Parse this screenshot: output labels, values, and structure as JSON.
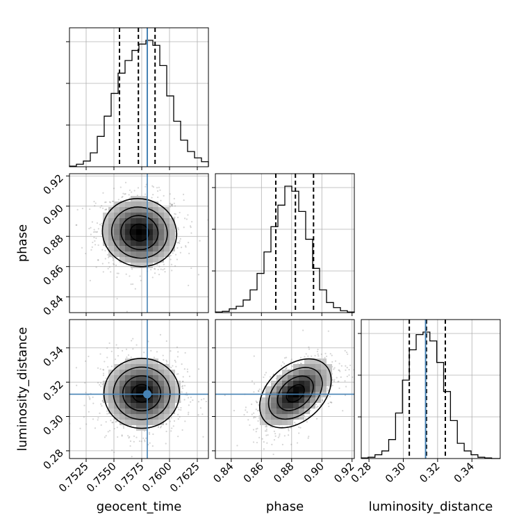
{
  "chart_data": {
    "type": "corner",
    "parameters": [
      "geocent_time",
      "phase",
      "luminosity_distance"
    ],
    "truths": {
      "geocent_time": 0.758,
      "luminosity_distance": 0.313
    },
    "quantiles": {
      "geocent_time": [
        0.7555,
        0.7572,
        0.7587
      ],
      "phase": [
        0.8695,
        0.8825,
        0.8945
      ],
      "luminosity_distance": [
        0.3035,
        0.3135,
        0.3245
      ]
    },
    "ranges": {
      "geocent_time": [
        0.751,
        0.7635
      ],
      "phase": [
        0.8295,
        0.9215
      ],
      "luminosity_distance": [
        0.2755,
        0.3565
      ]
    },
    "ticks": {
      "geocent_time": [
        "0.7525",
        "0.7550",
        "0.7575",
        "0.7600",
        "0.7625"
      ],
      "phase": [
        "0.84",
        "0.86",
        "0.88",
        "0.90",
        "0.92"
      ],
      "luminosity_distance": [
        "0.28",
        "0.30",
        "0.32",
        "0.34"
      ]
    },
    "histograms": {
      "geocent_time": {
        "edges_start": 0.751,
        "bin_width": 0.000625,
        "counts": [
          0.005,
          0.02,
          0.045,
          0.11,
          0.24,
          0.4,
          0.58,
          0.74,
          0.84,
          0.92,
          0.97,
          1.0,
          0.96,
          0.8,
          0.56,
          0.36,
          0.21,
          0.12,
          0.07,
          0.04,
          0.015
        ]
      },
      "phase": {
        "edges_start": 0.8295,
        "bin_width": 0.0046,
        "counts": [
          0.005,
          0.01,
          0.03,
          0.05,
          0.1,
          0.18,
          0.31,
          0.48,
          0.68,
          0.85,
          1.0,
          0.96,
          0.8,
          0.58,
          0.35,
          0.18,
          0.08,
          0.04,
          0.015,
          0.005
        ]
      },
      "luminosity_distance": {
        "edges_start": 0.2755,
        "bin_width": 0.004,
        "counts": [
          0.005,
          0.01,
          0.03,
          0.06,
          0.15,
          0.36,
          0.62,
          0.86,
          0.98,
          1.0,
          0.93,
          0.76,
          0.53,
          0.3,
          0.12,
          0.06,
          0.03,
          0.01,
          0.005,
          0.0
        ]
      }
    },
    "joint": [
      {
        "x": "geocent_time",
        "y": "phase",
        "center": [
          0.7573,
          0.8825
        ],
        "sigma": [
          0.0017,
          0.0114
        ],
        "rho": -0.05
      },
      {
        "x": "geocent_time",
        "y": "luminosity_distance",
        "center": [
          0.7575,
          0.3135
        ],
        "sigma": [
          0.0017,
          0.0102
        ],
        "rho": 0.0
      },
      {
        "x": "phase",
        "y": "luminosity_distance",
        "center": [
          0.8825,
          0.3135
        ],
        "sigma": [
          0.012,
          0.01
        ],
        "rho": 0.55
      }
    ],
    "contour_levels_sigma": [
      0.5,
      1.0,
      1.5,
      2.0
    ],
    "xlabel": [
      "geocent_time",
      "phase",
      "luminosity_distance"
    ],
    "ylabel": [
      "phase",
      "luminosity_distance"
    ],
    "truth_color": "#4682b4",
    "grid": true
  },
  "colors": {
    "truth": "#4682b4",
    "hist": "#000000",
    "grid": "#b0b0b0",
    "frame": "#000000"
  }
}
